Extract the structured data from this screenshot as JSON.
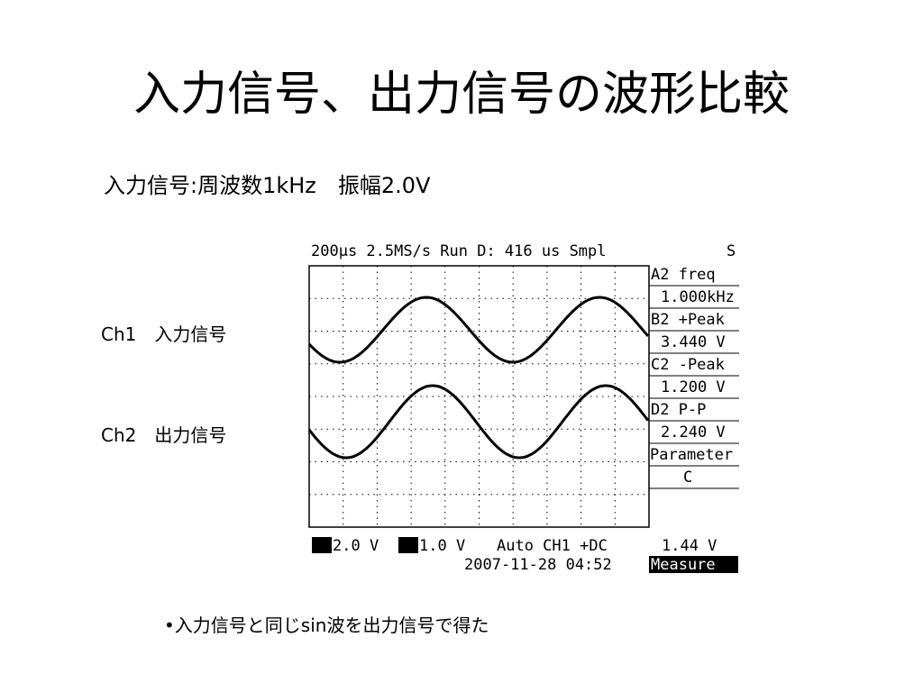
{
  "title": "入力信号、出力信号の波形比較",
  "subtitle": "入力信号:周波数1kHz　振幅2.0V",
  "channel_labels": [
    "Ch1　入力信号",
    "Ch2　出力信号"
  ],
  "scope": {
    "status_bar": "200μs  2.5MS/s Run D: 416 us Smpl",
    "status_right": "S",
    "measurements": [
      {
        "label": "A2 freq",
        "value": "1.000kHz"
      },
      {
        "label": "B2 +Peak",
        "value": "3.440 V"
      },
      {
        "label": "C2 -Peak",
        "value": "1.200 V"
      },
      {
        "label": "D2 P-P",
        "value": "2.240 V"
      }
    ],
    "parameter": {
      "label": "Parameter",
      "value": "C"
    },
    "ch1_scale": "2.0 V",
    "ch2_scale": "1.0 V",
    "trigger": "Auto CH1 +DC",
    "cursor_value": "1.44 V",
    "timestamp": "2007-11-28 04:52",
    "mode": "Measure"
  },
  "bullet": "•入力信号と同じsin波を出力信号で得た"
}
